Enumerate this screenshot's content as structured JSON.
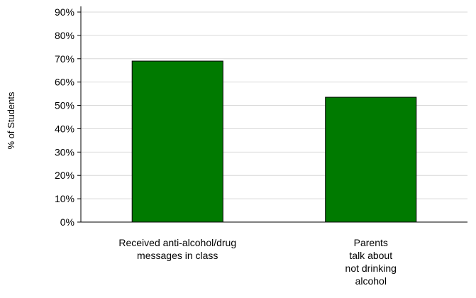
{
  "chart_data": {
    "type": "bar",
    "categories": [
      [
        "Received  anti-alcohol/drug",
        "messages in class"
      ],
      [
        "Parents",
        "talk about",
        "not drinking",
        "alcohol"
      ]
    ],
    "values": [
      69,
      53.5
    ],
    "ylabel": "% of Students",
    "ylim": [
      0,
      90
    ],
    "yticks": [
      0,
      10,
      20,
      30,
      40,
      50,
      60,
      70,
      80,
      90
    ],
    "ytick_format": "percent",
    "grid": true,
    "bar_color": "#007a00",
    "bar_edge_color": "#000000",
    "grid_color": "#d9d9d9"
  }
}
